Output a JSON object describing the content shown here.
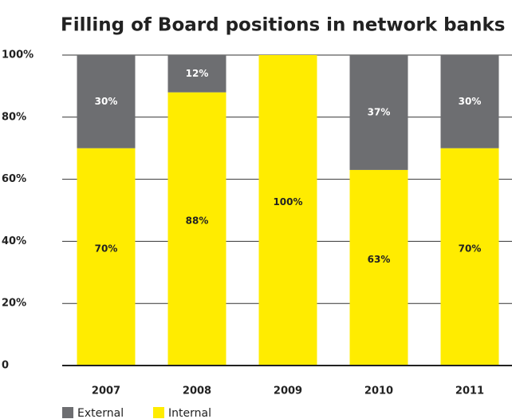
{
  "chart_data": {
    "type": "stacked_bar",
    "title": "Filling of Board positions in network banks",
    "categories": [
      "2007",
      "2008",
      "2009",
      "2010",
      "2011"
    ],
    "series": [
      {
        "name": "Internal",
        "color": "#ffec00",
        "values": [
          70,
          88,
          100,
          63,
          70
        ],
        "value_labels": [
          "70%",
          "88%",
          "100%",
          "63%",
          "70%"
        ]
      },
      {
        "name": "External",
        "color": "#6d6e71",
        "values": [
          30,
          12,
          0,
          37,
          30
        ],
        "value_labels": [
          "30%",
          "12%",
          null,
          "37%",
          "30%"
        ]
      }
    ],
    "ylim": [
      0,
      100
    ],
    "yticks": [
      0,
      {
        "value": 20,
        "label": "20%"
      },
      {
        "value": 40,
        "label": "40%"
      },
      {
        "value": 60,
        "label": "60%"
      },
      {
        "value": 80,
        "label": "80%"
      },
      {
        "value": 100,
        "label": "100%"
      }
    ],
    "grid": true,
    "legend": "bottom-left"
  }
}
